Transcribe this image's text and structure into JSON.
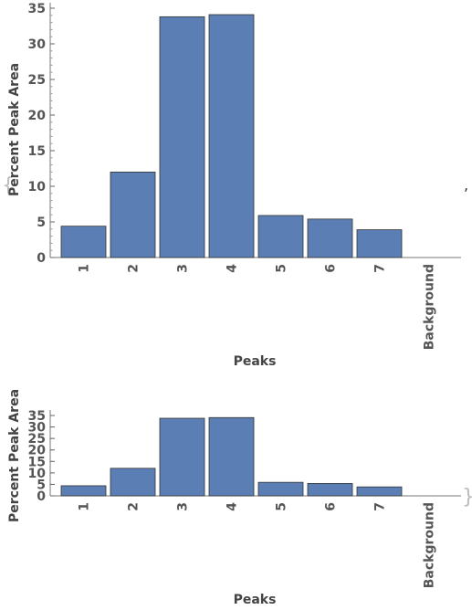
{
  "separator": ",",
  "brace_open": "{",
  "brace_close": "}",
  "chart_data": [
    {
      "type": "bar",
      "categories": [
        "1",
        "2",
        "3",
        "4",
        "5",
        "6",
        "7",
        "Background"
      ],
      "values": [
        4.4,
        12.0,
        33.8,
        34.1,
        5.9,
        5.4,
        3.9,
        0
      ],
      "title": "",
      "xlabel": "Peaks",
      "ylabel": "Percent Peak Area",
      "ylim": [
        0,
        35
      ],
      "yticks": [
        0,
        5,
        10,
        15,
        20,
        25,
        30,
        35
      ],
      "bar_color": "#5b7fb5",
      "bar_edge_color": "#333333",
      "grid": false
    },
    {
      "type": "bar",
      "categories": [
        "1",
        "2",
        "3",
        "4",
        "5",
        "6",
        "7",
        "Background"
      ],
      "values": [
        4.4,
        12.0,
        33.8,
        34.1,
        5.9,
        5.4,
        3.9,
        0
      ],
      "title": "",
      "xlabel": "Peaks",
      "ylabel": "Percent Peak Area",
      "ylim": [
        0,
        35
      ],
      "yticks": [
        0,
        5,
        10,
        15,
        20,
        25,
        30,
        35
      ],
      "bar_color": "#5b7fb5",
      "bar_edge_color": "#333333",
      "grid": false
    }
  ]
}
